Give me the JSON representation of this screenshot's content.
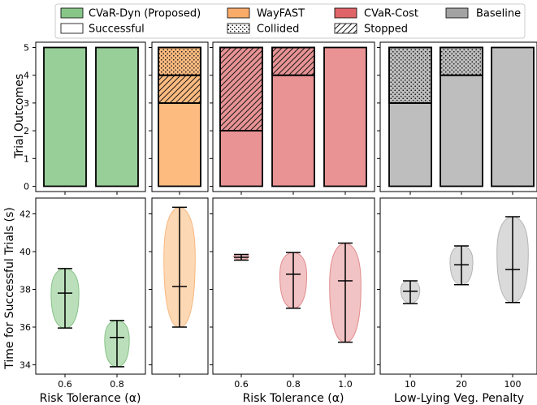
{
  "legend": {
    "items": [
      {
        "label": "CVaR-Dyn (Proposed)",
        "swatch": "#88c688"
      },
      {
        "label": "WayFAST",
        "swatch": "#f9ab6a"
      },
      {
        "label": "CVaR-Cost",
        "swatch": "#df6467"
      },
      {
        "label": "Baseline",
        "swatch": "#a2a2a2"
      },
      {
        "label": "Successful",
        "swatch": "#ffffff"
      },
      {
        "label": "Collided",
        "swatch": "dots"
      },
      {
        "label": "Stopped",
        "swatch": "hatch"
      }
    ]
  },
  "chart_data": [
    {
      "type": "bar",
      "panel": "top-1",
      "ylabel": "Trial Outcomes",
      "ylim": [
        0,
        5
      ],
      "yticks": [
        "0",
        "1",
        "2",
        "3",
        "4",
        "5"
      ],
      "categories": [
        "0.6",
        "0.8"
      ],
      "color": "#98ce98",
      "series": [
        {
          "name": "Successful",
          "values": [
            5,
            5
          ]
        },
        {
          "name": "Stopped",
          "values": [
            0,
            0
          ]
        },
        {
          "name": "Collided",
          "values": [
            0,
            0
          ]
        }
      ]
    },
    {
      "type": "bar",
      "panel": "top-2",
      "ylim": [
        0,
        5
      ],
      "categories": [
        ""
      ],
      "color": "#fdbb80",
      "series": [
        {
          "name": "Successful",
          "values": [
            3
          ]
        },
        {
          "name": "Stopped",
          "values": [
            1
          ]
        },
        {
          "name": "Collided",
          "values": [
            1
          ]
        }
      ]
    },
    {
      "type": "bar",
      "panel": "top-3",
      "ylim": [
        0,
        5
      ],
      "categories": [
        "0.6",
        "0.8",
        "1.0"
      ],
      "color": "#e99394",
      "series": [
        {
          "name": "Successful",
          "values": [
            2,
            4,
            5
          ]
        },
        {
          "name": "Stopped",
          "values": [
            3,
            1,
            0
          ]
        },
        {
          "name": "Collided",
          "values": [
            0,
            0,
            0
          ]
        }
      ]
    },
    {
      "type": "bar",
      "panel": "top-4",
      "ylim": [
        0,
        5
      ],
      "categories": [
        "10",
        "20",
        "100"
      ],
      "color": "#bebebe",
      "series": [
        {
          "name": "Successful",
          "values": [
            3,
            4,
            5
          ]
        },
        {
          "name": "Stopped",
          "values": [
            0,
            0,
            0
          ]
        },
        {
          "name": "Collided",
          "values": [
            2,
            1,
            0
          ]
        }
      ]
    },
    {
      "type": "violin",
      "panel": "bottom-1",
      "ylabel": "Time for Successful Trials (s)",
      "xlabel": "Risk Tolerance (α)",
      "yticks": [
        "34",
        "36",
        "38",
        "40",
        "42"
      ],
      "ylim": [
        33.6,
        42.9
      ],
      "categories": [
        "0.6",
        "0.8"
      ],
      "color": "#b8deb8",
      "stroke": "#7fbf7f",
      "groups": [
        {
          "min": 35.95,
          "median": 37.8,
          "max": 39.1
        },
        {
          "min": 33.9,
          "median": 35.45,
          "max": 36.35
        }
      ]
    },
    {
      "type": "violin",
      "panel": "bottom-2",
      "ylim": [
        33.6,
        42.9
      ],
      "categories": [
        ""
      ],
      "color": "#fdd6b1",
      "stroke": "#f7b57a",
      "groups": [
        {
          "min": 36.0,
          "median": 38.15,
          "max": 42.35
        }
      ]
    },
    {
      "type": "violin",
      "panel": "bottom-3",
      "xlabel": "Risk Tolerance (α)",
      "ylim": [
        33.6,
        42.9
      ],
      "categories": [
        "0.6",
        "0.8",
        "1.0"
      ],
      "color": "#f2c0c1",
      "stroke": "#e08587",
      "groups": [
        {
          "min": 39.55,
          "median": 39.7,
          "max": 39.85
        },
        {
          "min": 37.0,
          "median": 38.8,
          "max": 39.95
        },
        {
          "min": 35.2,
          "median": 38.45,
          "max": 40.45
        }
      ]
    },
    {
      "type": "violin",
      "panel": "bottom-4",
      "xlabel": "Low-Lying Veg. Penalty",
      "ylim": [
        33.6,
        42.9
      ],
      "categories": [
        "10",
        "20",
        "100"
      ],
      "color": "#d9d9d9",
      "stroke": "#b0b0b0",
      "groups": [
        {
          "min": 37.25,
          "median": 37.9,
          "max": 38.45
        },
        {
          "min": 38.25,
          "median": 39.3,
          "max": 40.3
        },
        {
          "min": 37.3,
          "median": 39.05,
          "max": 41.85
        }
      ]
    }
  ]
}
